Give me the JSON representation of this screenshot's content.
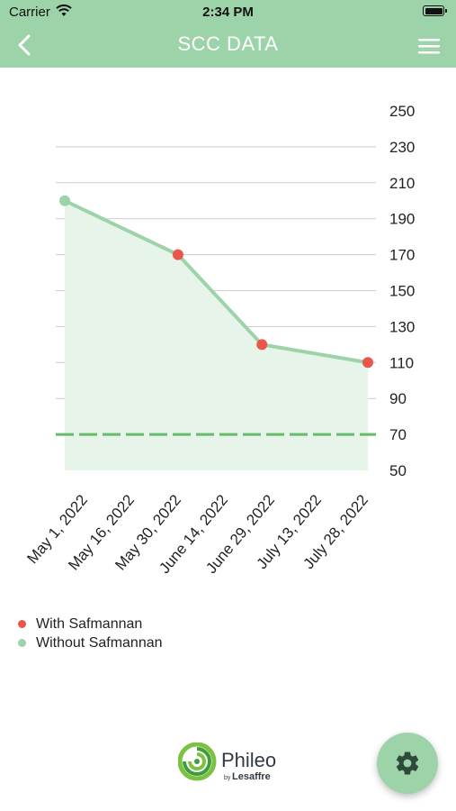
{
  "status_bar": {
    "carrier": "Carrier",
    "time": "2:34 PM"
  },
  "header": {
    "title": "SCC DATA",
    "back_icon": "chevron-left-icon",
    "menu_icon": "hamburger-menu-icon"
  },
  "colors": {
    "header_bg": "#9dd3a9",
    "line": "#9dd3a9",
    "area": "#e6f4e9",
    "dot_with": "#e8574a",
    "dot_without": "#9dd3a9",
    "threshold": "#66bb6a",
    "grid": "#cccccc"
  },
  "chart_data": {
    "type": "line",
    "x_tick_labels": [
      "May 1, 2022",
      "May 16, 2022",
      "May 30, 2022",
      "June 14, 2022",
      "June 29, 2022",
      "July 13, 2022",
      "July 28, 2022"
    ],
    "y_tick_labels": [
      "250",
      "230",
      "210",
      "190",
      "170",
      "150",
      "130",
      "110",
      "90",
      "70",
      "50"
    ],
    "ylim": [
      50,
      250
    ],
    "threshold": 70,
    "grid": true,
    "legend_position": "bottom-left",
    "points": [
      {
        "x": "2022-05-01",
        "y": 200,
        "series": "Without Safmannan"
      },
      {
        "x": "2022-06-01",
        "y": 170,
        "series": "With Safmannan"
      },
      {
        "x": "2022-06-24",
        "y": 120,
        "series": "With Safmannan"
      },
      {
        "x": "2022-07-23",
        "y": 110,
        "series": "With Safmannan"
      }
    ],
    "series": [
      {
        "name": "With Safmannan",
        "color": "#e8574a"
      },
      {
        "name": "Without Safmannan",
        "color": "#9dd3a9"
      }
    ]
  },
  "legend": [
    {
      "label": "With Safmannan",
      "color": "#e8574a"
    },
    {
      "label": "Without Safmannan",
      "color": "#9dd3a9"
    }
  ],
  "footer": {
    "logo_name": "Phileo",
    "logo_sub_prefix": "by",
    "logo_sub": "Lesaffre",
    "settings_icon": "gear-icon"
  }
}
